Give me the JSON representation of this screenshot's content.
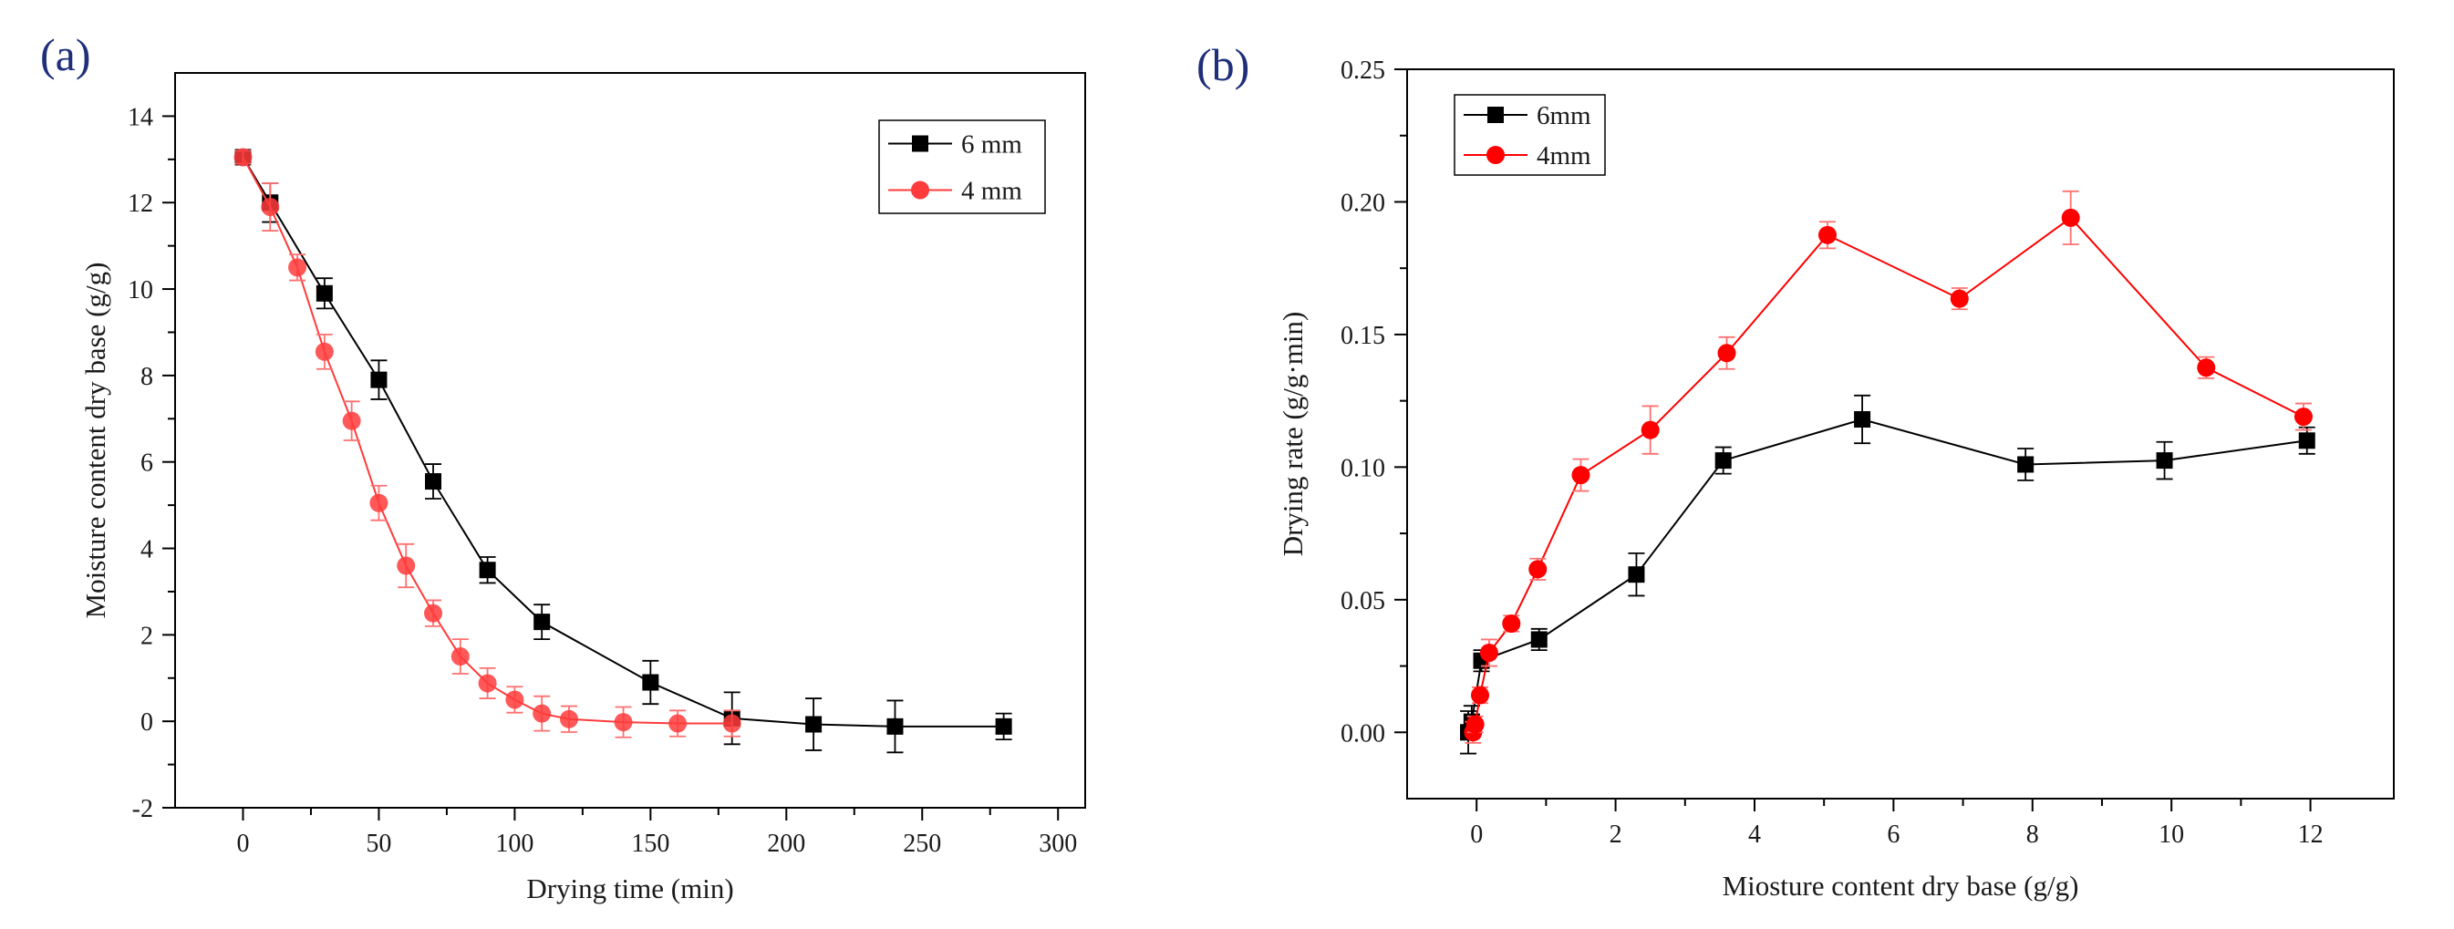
{
  "chart_data": [
    {
      "type": "line",
      "panel_label": "(a)",
      "xlabel": "Drying time (min)",
      "ylabel": "Moisture content dry base (g/g)",
      "xlim": [
        -25,
        310
      ],
      "ylim": [
        -2,
        15
      ],
      "xticks": [
        0,
        50,
        100,
        150,
        200,
        250,
        300
      ],
      "yticks": [
        -2,
        0,
        2,
        4,
        6,
        8,
        10,
        12,
        14
      ],
      "xtick_labels": [
        "0",
        "50",
        "100",
        "150",
        "200",
        "250",
        "300"
      ],
      "ytick_labels": [
        "-2",
        "0",
        "2",
        "4",
        "6",
        "8",
        "10",
        "12",
        "14"
      ],
      "legend_position": "top-right",
      "series": [
        {
          "name": "6 mm",
          "color": "#000000",
          "marker": "square",
          "x": [
            0,
            10,
            30,
            50,
            70,
            90,
            110,
            150,
            180,
            210,
            240,
            280
          ],
          "y": [
            13.05,
            12.0,
            9.9,
            7.9,
            5.55,
            3.5,
            2.3,
            0.9,
            0.07,
            -0.07,
            -0.12,
            -0.12
          ],
          "err": [
            0.15,
            0.45,
            0.35,
            0.45,
            0.4,
            0.3,
            0.4,
            0.5,
            0.6,
            0.6,
            0.6,
            0.3
          ]
        },
        {
          "name": "4 mm",
          "color": "#ff3b3b",
          "marker": "circle",
          "x": [
            0,
            10,
            20,
            30,
            40,
            50,
            60,
            70,
            80,
            90,
            100,
            110,
            120,
            140,
            160,
            180
          ],
          "y": [
            13.05,
            11.9,
            10.5,
            8.55,
            6.95,
            5.05,
            3.6,
            2.5,
            1.5,
            0.88,
            0.5,
            0.18,
            0.05,
            -0.02,
            -0.05,
            -0.05
          ],
          "err": [
            0.15,
            0.55,
            0.3,
            0.4,
            0.45,
            0.4,
            0.5,
            0.3,
            0.4,
            0.35,
            0.3,
            0.4,
            0.3,
            0.35,
            0.3,
            0.3
          ]
        }
      ]
    },
    {
      "type": "line",
      "panel_label": "(b)",
      "xlabel": "Miosture content dry base (g/g)",
      "ylabel": "Drying rate (g/g·min)",
      "xlim": [
        -1,
        13.2
      ],
      "ylim": [
        -0.025,
        0.25
      ],
      "xticks": [
        0,
        2,
        4,
        6,
        8,
        10,
        12
      ],
      "yticks": [
        0,
        0.05,
        0.1,
        0.15,
        0.2,
        0.25
      ],
      "xtick_labels": [
        "0",
        "2",
        "4",
        "6",
        "8",
        "10",
        "12"
      ],
      "ytick_labels": [
        "0.00",
        "0.05",
        "0.10",
        "0.15",
        "0.20",
        "0.25"
      ],
      "legend_position": "top-left",
      "series": [
        {
          "name": "6mm",
          "color": "#000000",
          "marker": "square",
          "x": [
            -0.12,
            -0.07,
            0.07,
            0.9,
            2.3,
            3.55,
            5.55,
            7.9,
            9.9,
            11.95
          ],
          "y": [
            0.0,
            0.004,
            0.027,
            0.035,
            0.0595,
            0.1025,
            0.118,
            0.101,
            0.1025,
            0.11
          ],
          "err": [
            0.008,
            0.006,
            0.004,
            0.004,
            0.008,
            0.005,
            0.009,
            0.006,
            0.007,
            0.005
          ]
        },
        {
          "name": "4mm",
          "color": "#ff0000",
          "marker": "circle",
          "x": [
            -0.05,
            -0.02,
            0.05,
            0.18,
            0.5,
            0.88,
            1.5,
            2.5,
            3.6,
            5.05,
            6.95,
            8.55,
            10.5,
            11.9
          ],
          "y": [
            0.0,
            0.003,
            0.014,
            0.03,
            0.041,
            0.0615,
            0.097,
            0.114,
            0.143,
            0.1875,
            0.1635,
            0.194,
            0.1375,
            0.119
          ],
          "err": [
            0.004,
            0.003,
            0.003,
            0.005,
            0.003,
            0.004,
            0.006,
            0.009,
            0.006,
            0.005,
            0.004,
            0.01,
            0.004,
            0.005
          ]
        }
      ]
    }
  ]
}
